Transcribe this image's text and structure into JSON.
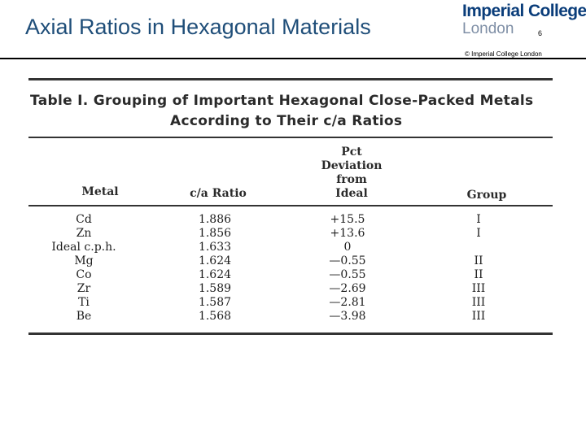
{
  "slide": {
    "title": "Axial Ratios in Hexagonal Materials",
    "page_number": "6",
    "copyright": "© Imperial College London"
  },
  "logo": {
    "line1": "Imperial College",
    "line2": "London"
  },
  "table": {
    "caption_line1": "Table I.  Grouping of Important Hexagonal Close-Packed Metals",
    "caption_line2": "According to Their c/a Ratios",
    "headers": {
      "metal": "Metal",
      "ratio": "c/a Ratio",
      "deviation_line1": "Pct",
      "deviation_line2": "Deviation",
      "deviation_line3": "from",
      "deviation_line4": "Ideal",
      "group": "Group"
    },
    "rows": [
      {
        "metal": "Cd",
        "ratio": "1.886",
        "deviation": "+15.5",
        "group": "I"
      },
      {
        "metal": "Zn",
        "ratio": "1.856",
        "deviation": "+13.6",
        "group": "I"
      },
      {
        "metal": "Ideal c.p.h.",
        "ratio": "1.633",
        "deviation": "0",
        "group": ""
      },
      {
        "metal": "Mg",
        "ratio": "1.624",
        "deviation": "—0.55",
        "group": "II"
      },
      {
        "metal": "Co",
        "ratio": "1.624",
        "deviation": "—0.55",
        "group": "II"
      },
      {
        "metal": "Zr",
        "ratio": "1.589",
        "deviation": "—2.69",
        "group": "III"
      },
      {
        "metal": "Ti",
        "ratio": "1.587",
        "deviation": "—2.81",
        "group": "III"
      },
      {
        "metal": "Be",
        "ratio": "1.568",
        "deviation": "—3.98",
        "group": "III"
      }
    ]
  }
}
